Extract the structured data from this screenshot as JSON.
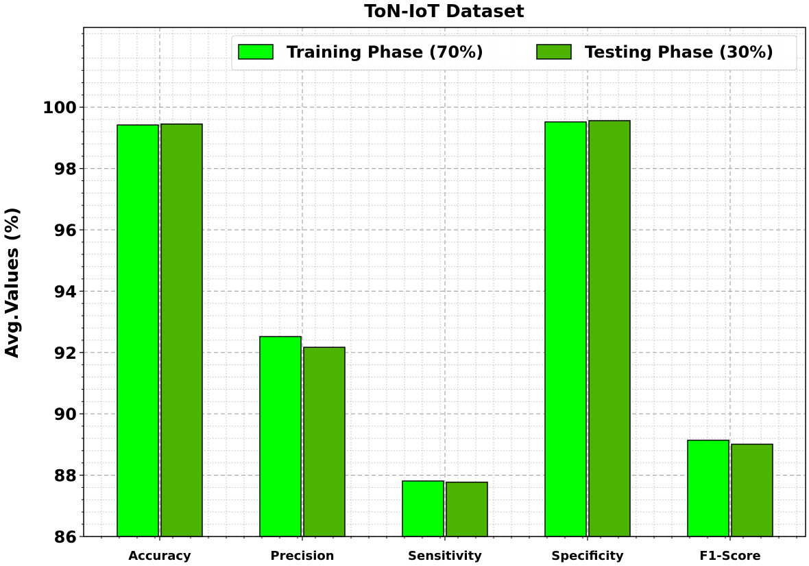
{
  "chart_data": {
    "type": "bar",
    "title": "ToN-IoT Dataset",
    "xlabel": "",
    "ylabel": "Avg.Values (%)",
    "categories": [
      "Accuracy",
      "Precision",
      "Sensitivity",
      "Specificity",
      "F1-Score"
    ],
    "series": [
      {
        "name": "Training Phase (70%)",
        "values": [
          99.42,
          92.52,
          87.81,
          99.52,
          89.14
        ]
      },
      {
        "name": "Testing Phase (30%)",
        "values": [
          99.45,
          92.17,
          87.77,
          99.56,
          89.01
        ]
      }
    ],
    "ylim": [
      86,
      102.6
    ],
    "yticks": [
      86,
      88,
      90,
      92,
      94,
      96,
      98,
      100
    ],
    "grid": true,
    "legend_position": "top-right",
    "colors": [
      "#00ff00",
      "#4cb300"
    ],
    "edge_color": "#000000"
  }
}
